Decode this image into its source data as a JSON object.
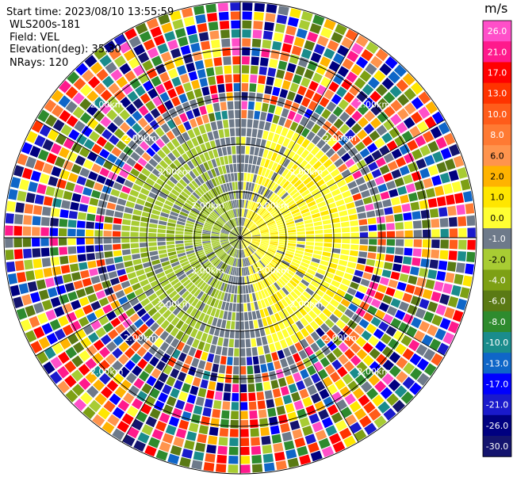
{
  "header": {
    "start_time": "Start time: 2023/08/10 13:55:59",
    "instrument": "WLS200s-181",
    "field": "Field: VEL",
    "elevation": "Elevation(deg): 35.30",
    "nrays": "NRays: 120"
  },
  "colorbar": {
    "unit": "m/s",
    "ticks": [
      "26.0",
      "21.0",
      "17.0",
      "13.0",
      "10.0",
      "8.0",
      "6.0",
      "2.0",
      "1.0",
      "0.0",
      "-1.0",
      "-2.0",
      "-4.0",
      "-6.0",
      "-8.0",
      "-10.0",
      "-13.0",
      "-17.0",
      "-21.0",
      "-26.0",
      "-30.0"
    ],
    "colors": [
      "#ff4fc9",
      "#ff1a8c",
      "#ff0000",
      "#ff3300",
      "#ff5c1a",
      "#ff7a33",
      "#ff944d",
      "#ffb300",
      "#ffe600",
      "#ffff33",
      "#6e7a8a",
      "#a8cc33",
      "#7da014",
      "#5a7a14",
      "#2e8b2e",
      "#1a8c8c",
      "#0f66c8",
      "#0000ff",
      "#1a1acc",
      "#000080",
      "#14146e"
    ]
  },
  "chart_data": {
    "type": "heatmap",
    "title": "",
    "field": "VEL",
    "units": "m/s",
    "elevation_deg": 35.3,
    "n_rays": 120,
    "range_ring_labels": [
      "2.00km",
      "2.00km",
      "2.00km",
      "2.00km"
    ],
    "color_scale_min": -30.0,
    "color_scale_max": 26.0,
    "pattern": {
      "east_half_near_range": "positive ~1-2 m/s (yellow)",
      "west_half_near_range": "negative ~-1 to -4 m/s (green)",
      "transition": "near 0 m/s (grey)",
      "far_range": "noise, full color range"
    }
  }
}
